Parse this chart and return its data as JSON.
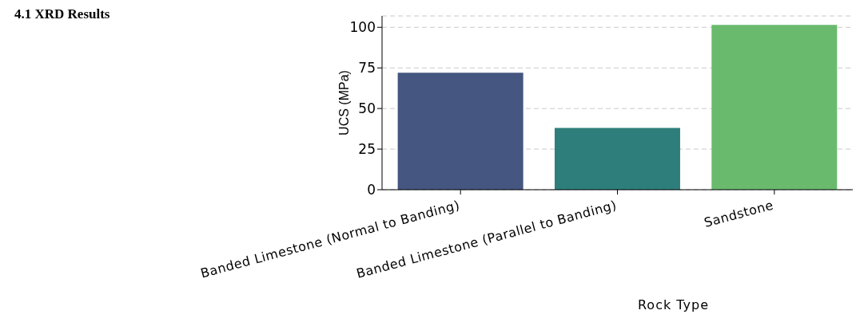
{
  "chart_data": {
    "type": "bar",
    "annotations": [
      "4.1 XRD Results"
    ],
    "xlabel": "Rock Type",
    "ylabel": "UCS (MPa)",
    "categories": [
      "Banded Limestone (Normal to Banding)",
      "Banded Limestone (Parallel to Banding)",
      "Sandstone"
    ],
    "values": [
      72,
      38,
      101.5
    ],
    "colors": [
      "#455681",
      "#2e7f7b",
      "#6aba6e"
    ],
    "ylim": [
      0,
      107
    ],
    "yticks": [
      0,
      25,
      50,
      75,
      100
    ],
    "grid": "y"
  }
}
